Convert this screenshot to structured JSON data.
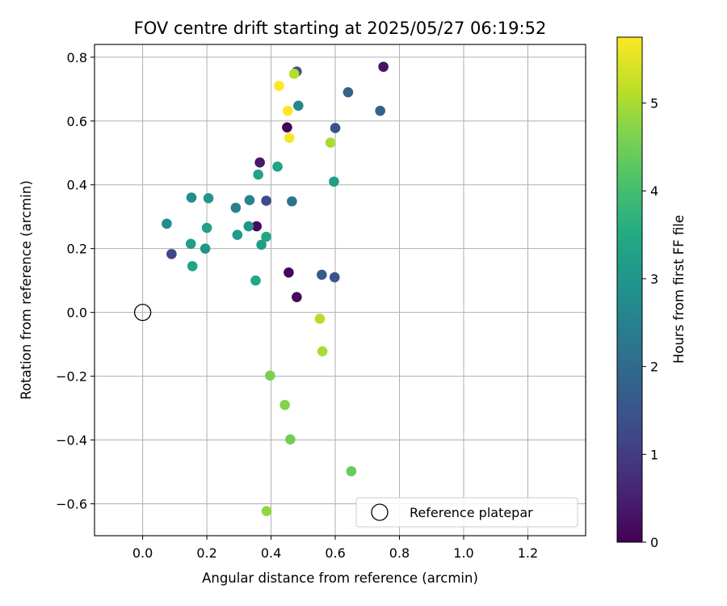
{
  "chart_data": {
    "type": "scatter",
    "title": "FOV centre drift starting at 2025/05/27 06:19:52",
    "xlabel": "Angular distance from reference (arcmin)",
    "ylabel": "Rotation from reference (arcmin)",
    "xlim": [
      -0.15,
      1.38
    ],
    "ylim": [
      -0.7,
      0.84
    ],
    "x_ticks": [
      0.0,
      0.2,
      0.4,
      0.6,
      0.8,
      1.0,
      1.2
    ],
    "x_tick_labels": [
      "0.0",
      "0.2",
      "0.4",
      "0.6",
      "0.8",
      "1.0",
      "1.2"
    ],
    "y_ticks": [
      -0.6,
      -0.4,
      -0.2,
      0.0,
      0.2,
      0.4,
      0.6,
      0.8
    ],
    "y_tick_labels": [
      "−0.6",
      "−0.4",
      "−0.2",
      "0.0",
      "0.2",
      "0.4",
      "0.6",
      "0.8"
    ],
    "grid": true,
    "colorbar": {
      "label": "Hours from first FF file",
      "colormap": "viridis",
      "range": [
        0,
        5.75
      ],
      "ticks": [
        0,
        1,
        2,
        3,
        4,
        5
      ],
      "tick_labels": [
        "0",
        "1",
        "2",
        "3",
        "4",
        "5"
      ]
    },
    "legend": {
      "placement": "lower-right",
      "entries": [
        {
          "label": "Reference platepar",
          "marker": "hollow-circle"
        }
      ]
    },
    "reference_point": {
      "x": 0.0,
      "y": 0.0
    },
    "points": [
      {
        "x": 0.45,
        "y": 0.58,
        "hours": 0.05
      },
      {
        "x": 0.75,
        "y": 0.77,
        "hours": 0.3
      },
      {
        "x": 0.365,
        "y": 0.47,
        "hours": 0.4
      },
      {
        "x": 0.355,
        "y": 0.27,
        "hours": 0.15
      },
      {
        "x": 0.455,
        "y": 0.125,
        "hours": 0.1
      },
      {
        "x": 0.48,
        "y": 0.048,
        "hours": 0.15
      },
      {
        "x": 0.09,
        "y": 0.183,
        "hours": 1.2
      },
      {
        "x": 0.385,
        "y": 0.35,
        "hours": 1.3
      },
      {
        "x": 0.6,
        "y": 0.578,
        "hours": 1.4
      },
      {
        "x": 0.598,
        "y": 0.11,
        "hours": 1.5
      },
      {
        "x": 0.558,
        "y": 0.118,
        "hours": 1.6
      },
      {
        "x": 0.48,
        "y": 0.755,
        "hours": 1.5
      },
      {
        "x": 0.64,
        "y": 0.69,
        "hours": 1.8
      },
      {
        "x": 0.74,
        "y": 0.632,
        "hours": 1.8
      },
      {
        "x": 0.465,
        "y": 0.348,
        "hours": 2.2
      },
      {
        "x": 0.29,
        "y": 0.328,
        "hours": 2.5
      },
      {
        "x": 0.333,
        "y": 0.352,
        "hours": 2.6
      },
      {
        "x": 0.485,
        "y": 0.648,
        "hours": 2.7
      },
      {
        "x": 0.075,
        "y": 0.278,
        "hours": 2.8
      },
      {
        "x": 0.152,
        "y": 0.36,
        "hours": 2.8
      },
      {
        "x": 0.205,
        "y": 0.358,
        "hours": 3.0
      },
      {
        "x": 0.33,
        "y": 0.27,
        "hours": 3.0
      },
      {
        "x": 0.295,
        "y": 0.243,
        "hours": 3.1
      },
      {
        "x": 0.195,
        "y": 0.2,
        "hours": 3.0
      },
      {
        "x": 0.15,
        "y": 0.215,
        "hours": 3.2
      },
      {
        "x": 0.155,
        "y": 0.145,
        "hours": 3.3
      },
      {
        "x": 0.2,
        "y": 0.265,
        "hours": 3.3
      },
      {
        "x": 0.37,
        "y": 0.212,
        "hours": 3.2
      },
      {
        "x": 0.385,
        "y": 0.237,
        "hours": 3.4
      },
      {
        "x": 0.36,
        "y": 0.432,
        "hours": 3.3
      },
      {
        "x": 0.42,
        "y": 0.457,
        "hours": 3.3
      },
      {
        "x": 0.596,
        "y": 0.41,
        "hours": 3.2
      },
      {
        "x": 0.352,
        "y": 0.1,
        "hours": 3.4
      },
      {
        "x": 0.65,
        "y": -0.498,
        "hours": 4.4
      },
      {
        "x": 0.46,
        "y": -0.398,
        "hours": 4.5
      },
      {
        "x": 0.397,
        "y": -0.198,
        "hours": 4.6
      },
      {
        "x": 0.443,
        "y": -0.29,
        "hours": 4.7
      },
      {
        "x": 0.386,
        "y": -0.623,
        "hours": 4.8
      },
      {
        "x": 0.56,
        "y": -0.122,
        "hours": 5.0
      },
      {
        "x": 0.552,
        "y": -0.02,
        "hours": 5.1
      },
      {
        "x": 0.585,
        "y": 0.532,
        "hours": 5.0
      },
      {
        "x": 0.472,
        "y": 0.748,
        "hours": 5.1
      },
      {
        "x": 0.425,
        "y": 0.71,
        "hours": 5.75
      },
      {
        "x": 0.452,
        "y": 0.632,
        "hours": 5.75
      },
      {
        "x": 0.457,
        "y": 0.547,
        "hours": 5.7
      }
    ]
  }
}
